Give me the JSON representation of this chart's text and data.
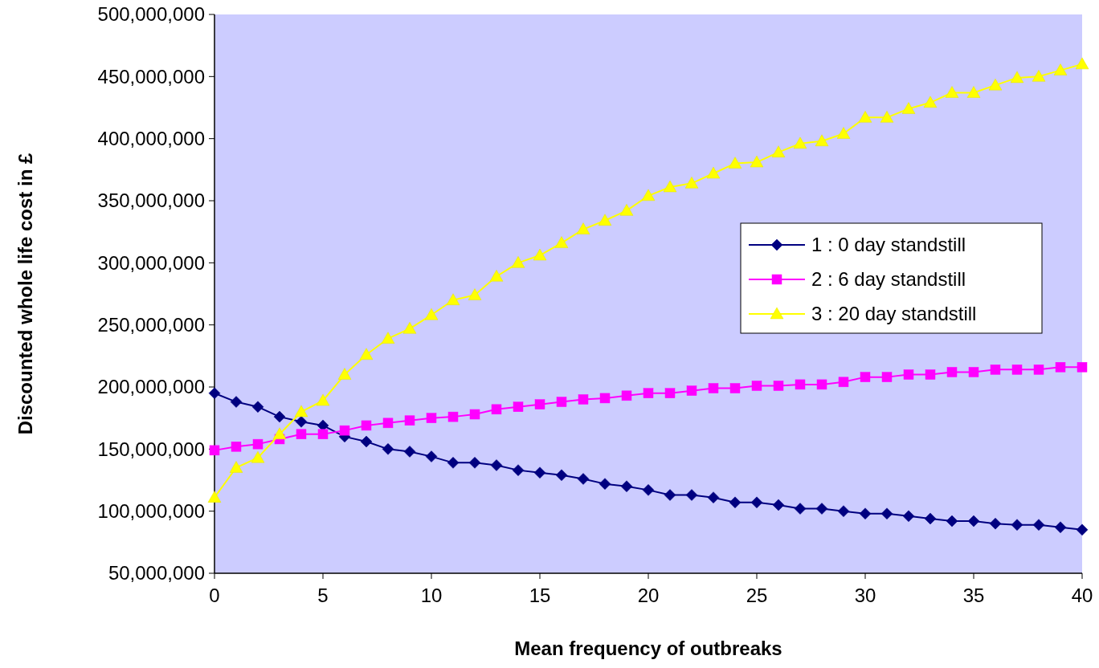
{
  "chart_data": {
    "type": "line",
    "xlabel": "Mean frequency of outbreaks",
    "ylabel": "Discounted whole life cost in £",
    "x": [
      0,
      1,
      2,
      3,
      4,
      5,
      6,
      7,
      8,
      9,
      10,
      11,
      12,
      13,
      14,
      15,
      16,
      17,
      18,
      19,
      20,
      21,
      22,
      23,
      24,
      25,
      26,
      27,
      28,
      29,
      30,
      31,
      32,
      33,
      34,
      35,
      36,
      37,
      38,
      39,
      40
    ],
    "series": [
      {
        "name": "1 : 0 day standstill",
        "color": "#000080",
        "marker": "diamond",
        "values": [
          195000000,
          188000000,
          184000000,
          176000000,
          172000000,
          169000000,
          160000000,
          156000000,
          150000000,
          148000000,
          144000000,
          139000000,
          139000000,
          137000000,
          133000000,
          131000000,
          129000000,
          126000000,
          122000000,
          120000000,
          117000000,
          113000000,
          113000000,
          111000000,
          107000000,
          107000000,
          105000000,
          102000000,
          102000000,
          100000000,
          98000000,
          98000000,
          96000000,
          94000000,
          92000000,
          92000000,
          90000000,
          89000000,
          89000000,
          87000000,
          85000000
        ]
      },
      {
        "name": "2 : 6 day standstill",
        "color": "#ff00ff",
        "marker": "square",
        "values": [
          149000000,
          152000000,
          154000000,
          158000000,
          162000000,
          162000000,
          165000000,
          169000000,
          171000000,
          173000000,
          175000000,
          176000000,
          178000000,
          182000000,
          184000000,
          186000000,
          188000000,
          190000000,
          191000000,
          193000000,
          195000000,
          195000000,
          197000000,
          199000000,
          199000000,
          201000000,
          201000000,
          202000000,
          202000000,
          204000000,
          208000000,
          208000000,
          210000000,
          210000000,
          212000000,
          212000000,
          214000000,
          214000000,
          214000000,
          216000000,
          216000000
        ]
      },
      {
        "name": "3 : 20 day standstill",
        "color": "#ffff00",
        "marker": "triangle",
        "values": [
          111000000,
          135000000,
          143000000,
          162000000,
          180000000,
          189000000,
          210000000,
          226000000,
          239000000,
          247000000,
          258000000,
          270000000,
          274000000,
          289000000,
          300000000,
          306000000,
          316000000,
          327000000,
          334000000,
          342000000,
          354000000,
          361000000,
          364000000,
          372000000,
          380000000,
          381000000,
          389000000,
          396000000,
          398000000,
          404000000,
          417000000,
          417000000,
          424000000,
          429000000,
          437000000,
          437000000,
          443000000,
          449000000,
          450000000,
          455000000,
          460000000
        ]
      }
    ],
    "xlim": [
      0,
      40
    ],
    "xticks": [
      0,
      5,
      10,
      15,
      20,
      25,
      30,
      35,
      40
    ],
    "ylim": [
      50000000,
      500000000
    ],
    "yticks": [
      {
        "value": 50000000,
        "label": "50,000,000"
      },
      {
        "value": 100000000,
        "label": "100,000,000"
      },
      {
        "value": 150000000,
        "label": "150,000,000"
      },
      {
        "value": 200000000,
        "label": "200,000,000"
      },
      {
        "value": 250000000,
        "label": "250,000,000"
      },
      {
        "value": 300000000,
        "label": "300,000,000"
      },
      {
        "value": 350000000,
        "label": "350,000,000"
      },
      {
        "value": 400000000,
        "label": "400,000,000"
      },
      {
        "value": 450000000,
        "label": "450,000,000"
      },
      {
        "value": 500000000,
        "label": "500,000,000"
      }
    ],
    "grid": false,
    "legend": "right",
    "line_style": "solid"
  }
}
